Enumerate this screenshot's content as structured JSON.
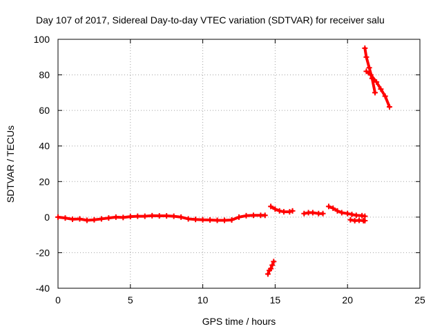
{
  "chart_data": {
    "type": "scatter",
    "title": "Day 107 of 2017, Sidereal Day-to-day VTEC variation (SDTVAR) for receiver salu",
    "xlabel": "GPS time / hours",
    "ylabel": "SDTVAR / TECUs",
    "xlim": [
      0,
      25
    ],
    "ylim": [
      -40,
      100
    ],
    "xticks": [
      0,
      5,
      10,
      15,
      20,
      25
    ],
    "xtick_labels": [
      "0",
      "5",
      "10",
      "15",
      "20",
      "25"
    ],
    "yticks": [
      -40,
      -20,
      0,
      20,
      40,
      60,
      80,
      100
    ],
    "ytick_labels": [
      "-40",
      "-20",
      "0",
      "20",
      "40",
      "60",
      "80",
      "100"
    ],
    "grid": true,
    "marker_color": "#ff0000",
    "series": [
      {
        "name": "SDTVAR",
        "segments": [
          {
            "x": [
              0.0,
              0.5,
              1.0,
              1.5,
              2.0,
              2.5,
              3.0,
              3.5,
              4.0,
              4.5,
              5.0,
              5.5,
              6.0,
              6.5,
              7.0,
              7.5,
              8.0,
              8.5,
              9.0,
              9.5,
              10.0,
              10.5,
              11.0,
              11.5,
              12.0,
              12.5,
              13.0,
              13.5,
              14.0,
              14.3
            ],
            "y": [
              0.0,
              -0.5,
              -1.2,
              -1.0,
              -1.8,
              -1.5,
              -1.0,
              -0.5,
              0.0,
              -0.2,
              0.3,
              0.5,
              0.5,
              0.8,
              0.7,
              0.7,
              0.5,
              0.0,
              -1.0,
              -1.3,
              -1.5,
              -1.6,
              -1.8,
              -1.8,
              -1.6,
              0.0,
              0.8,
              1.0,
              1.0,
              1.0
            ]
          },
          {
            "x": [
              14.5,
              14.6,
              14.7,
              14.8,
              14.9
            ],
            "y": [
              -32,
              -30,
              -29,
              -27,
              -25
            ]
          },
          {
            "x": [
              14.7,
              15.0,
              15.3,
              15.6,
              16.0,
              16.2
            ],
            "y": [
              6.0,
              4.5,
              3.5,
              3.0,
              3.0,
              3.5
            ]
          },
          {
            "x": [
              17.0,
              17.3,
              17.6,
              18.0,
              18.3
            ],
            "y": [
              2.0,
              2.5,
              2.5,
              2.0,
              2.0
            ]
          },
          {
            "x": [
              18.7,
              19.0,
              19.3,
              19.6,
              20.0,
              20.3,
              20.6,
              21.0,
              21.2
            ],
            "y": [
              6.0,
              5.0,
              3.5,
              2.5,
              2.0,
              1.5,
              1.0,
              0.8,
              0.5
            ]
          },
          {
            "x": [
              20.2,
              20.5,
              20.8,
              21.1,
              21.2
            ],
            "y": [
              -1.5,
              -2.0,
              -1.8,
              -2.0,
              -2.0
            ]
          },
          {
            "x": [
              21.2,
              21.3,
              21.5,
              21.7,
              21.9
            ],
            "y": [
              95,
              90,
              84,
              78,
              70
            ]
          },
          {
            "x": [
              21.3,
              21.6,
              22.0,
              22.3,
              22.6,
              22.9
            ],
            "y": [
              82,
              80,
              76,
              72,
              68,
              62
            ]
          }
        ]
      }
    ]
  }
}
